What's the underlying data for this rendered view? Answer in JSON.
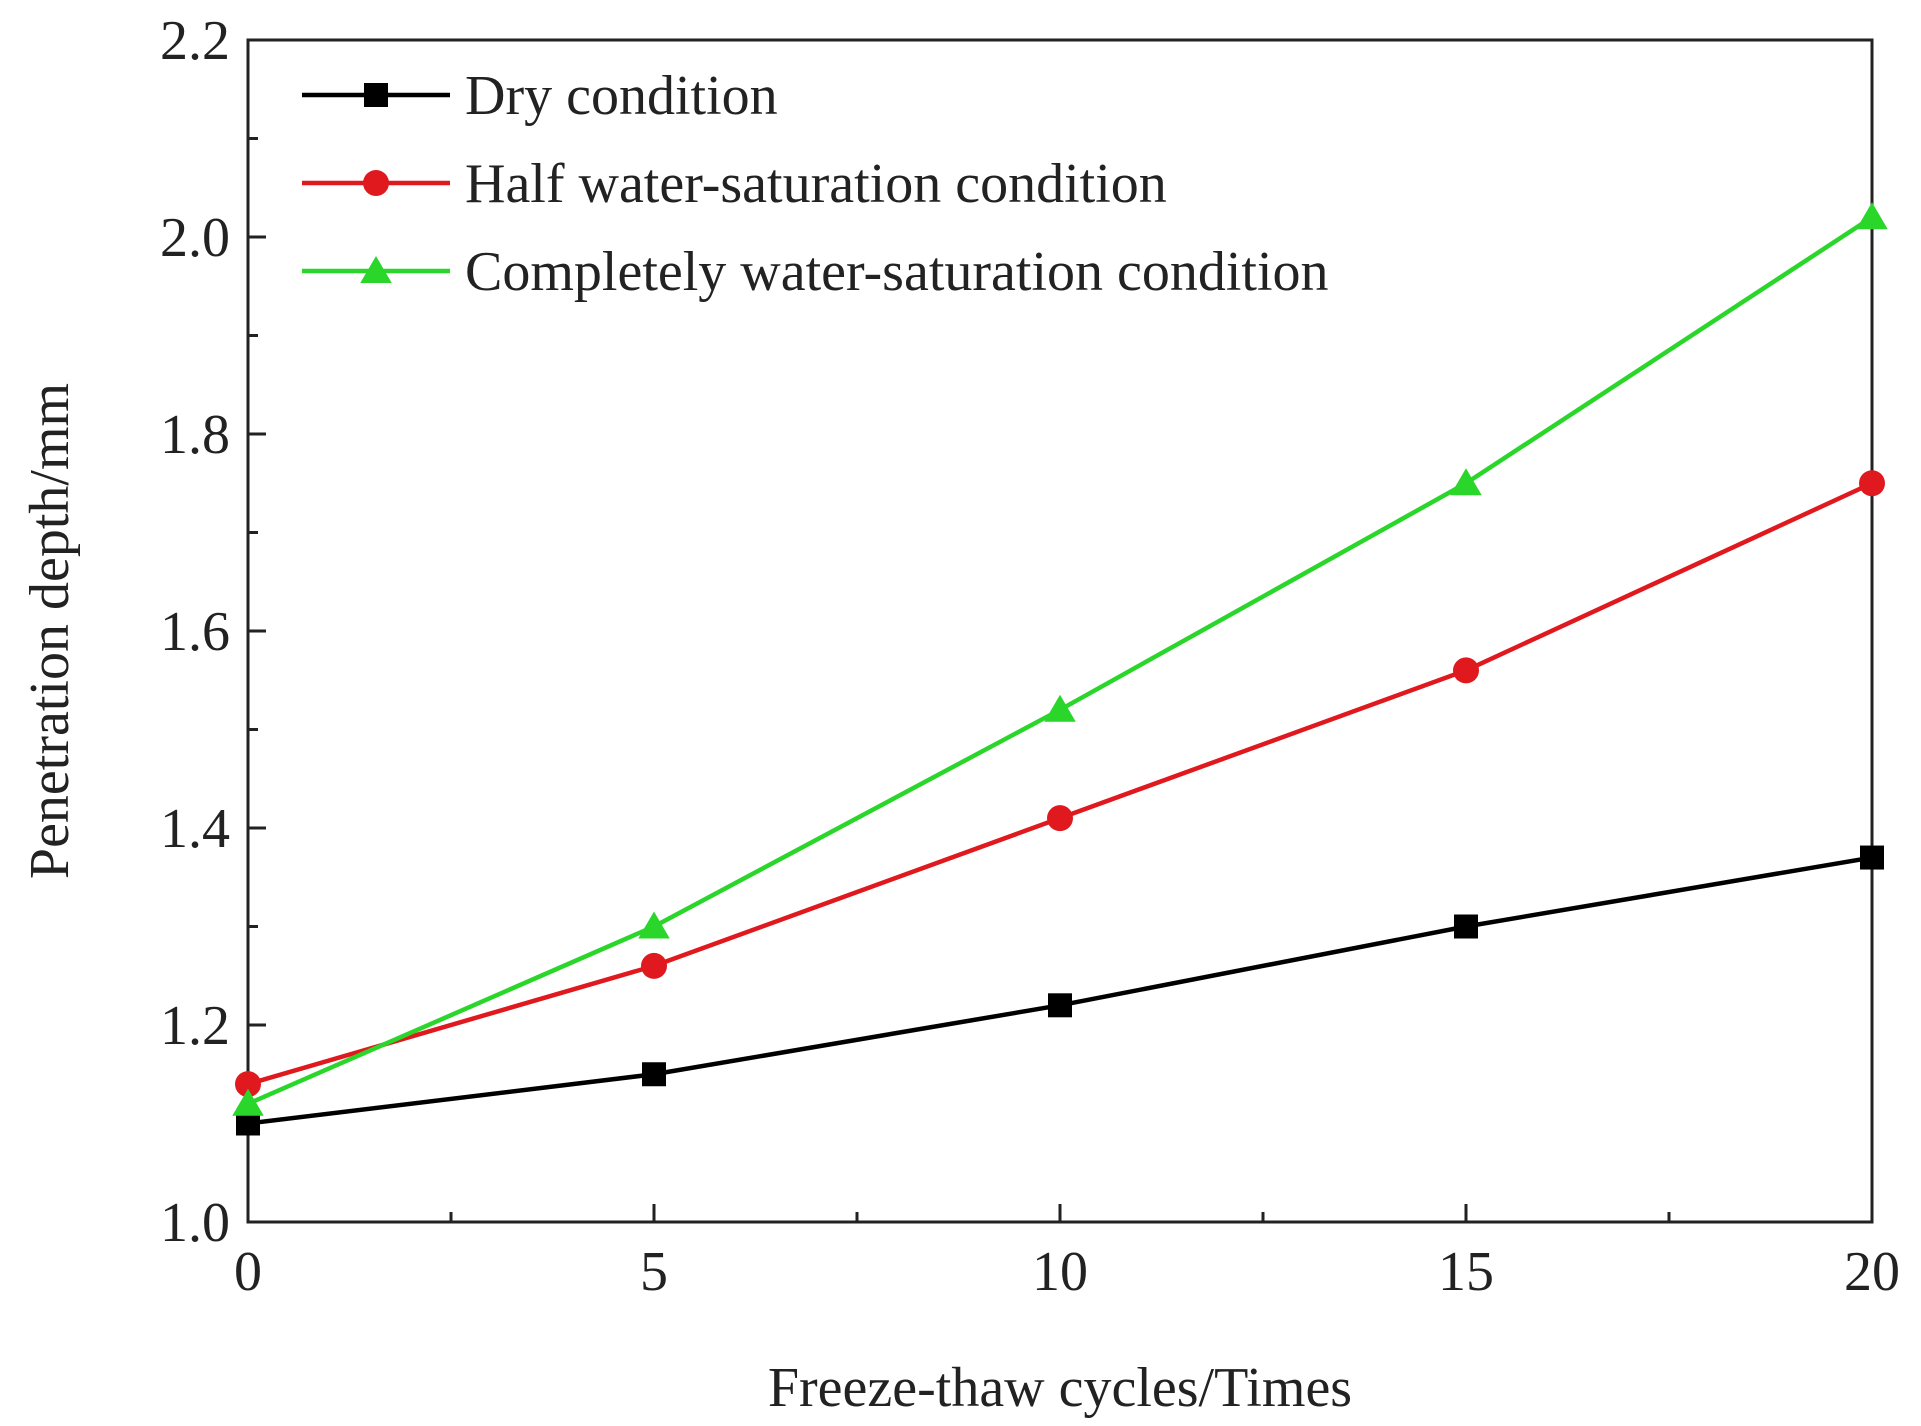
{
  "chart_data": {
    "type": "line",
    "title": "",
    "xlabel": "Freeze-thaw cycles/Times",
    "ylabel": "Penetration depth/mm",
    "x": [
      0,
      5,
      10,
      15,
      20
    ],
    "xlim": [
      0,
      20
    ],
    "ylim": [
      1.0,
      2.2
    ],
    "xticks": [
      "0",
      "5",
      "10",
      "15",
      "20"
    ],
    "yticks": [
      "1.0",
      "1.2",
      "1.4",
      "1.6",
      "1.8",
      "2.0",
      "2.2"
    ],
    "grid": false,
    "legend_position": "top-left",
    "series": [
      {
        "name": "Dry condition",
        "values": [
          1.1,
          1.15,
          1.22,
          1.3,
          1.37
        ],
        "color": "#000000",
        "marker": "square"
      },
      {
        "name": "Half water-saturation condition",
        "values": [
          1.14,
          1.26,
          1.41,
          1.56,
          1.75
        ],
        "color": "#e0191f",
        "marker": "circle"
      },
      {
        "name": "Completely water-saturation condition",
        "values": [
          1.12,
          1.3,
          1.52,
          1.75,
          2.02
        ],
        "color": "#2bd62b",
        "marker": "triangle"
      }
    ]
  }
}
